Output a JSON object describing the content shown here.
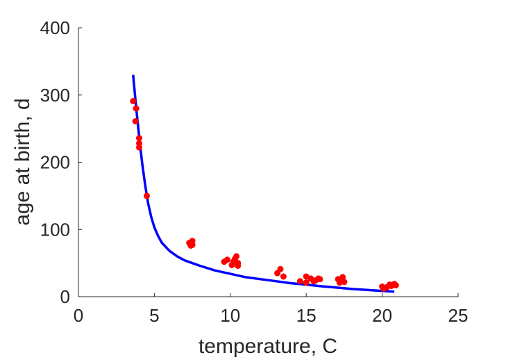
{
  "chart_data": {
    "type": "scatter",
    "title": "",
    "xlabel": "temperature, C",
    "ylabel": "age at birth, d",
    "xlim": [
      0,
      25
    ],
    "ylim": [
      0,
      400
    ],
    "xticks": [
      0,
      5,
      10,
      15,
      20,
      25
    ],
    "yticks": [
      0,
      100,
      200,
      300,
      400
    ],
    "grid": false,
    "series": [
      {
        "type": "scatter",
        "color": "#ff0000",
        "points": [
          [
            3.6,
            291
          ],
          [
            3.8,
            280
          ],
          [
            3.75,
            261
          ],
          [
            4.0,
            236
          ],
          [
            4.0,
            228
          ],
          [
            4.0,
            222
          ],
          [
            4.5,
            150
          ],
          [
            7.3,
            80
          ],
          [
            7.4,
            76
          ],
          [
            7.5,
            83
          ],
          [
            7.5,
            77
          ],
          [
            9.6,
            52
          ],
          [
            9.8,
            55
          ],
          [
            10.1,
            47
          ],
          [
            10.2,
            52
          ],
          [
            10.3,
            56
          ],
          [
            10.4,
            60
          ],
          [
            10.5,
            50
          ],
          [
            10.5,
            46
          ],
          [
            13.1,
            35
          ],
          [
            13.3,
            41
          ],
          [
            13.5,
            30
          ],
          [
            14.6,
            23
          ],
          [
            15.0,
            30
          ],
          [
            15.0,
            21
          ],
          [
            15.3,
            27
          ],
          [
            15.5,
            23
          ],
          [
            15.6,
            24
          ],
          [
            15.8,
            27
          ],
          [
            15.9,
            26
          ],
          [
            17.1,
            26
          ],
          [
            17.2,
            21
          ],
          [
            17.3,
            25
          ],
          [
            17.4,
            29
          ],
          [
            17.5,
            22
          ],
          [
            20.0,
            15
          ],
          [
            20.1,
            12
          ],
          [
            20.3,
            14
          ],
          [
            20.5,
            18
          ],
          [
            20.6,
            16
          ],
          [
            20.8,
            19
          ],
          [
            20.9,
            17
          ]
        ]
      },
      {
        "type": "line",
        "color": "#0000ff",
        "points": [
          [
            3.6,
            330
          ],
          [
            3.8,
            282
          ],
          [
            4.0,
            238
          ],
          [
            4.2,
            198
          ],
          [
            4.4,
            165
          ],
          [
            4.6,
            138
          ],
          [
            4.8,
            118
          ],
          [
            5.0,
            103
          ],
          [
            5.25,
            90
          ],
          [
            5.5,
            80
          ],
          [
            6.0,
            68
          ],
          [
            6.5,
            60
          ],
          [
            7.0,
            54
          ],
          [
            8.0,
            46
          ],
          [
            9.0,
            39
          ],
          [
            10.0,
            34
          ],
          [
            11.0,
            29
          ],
          [
            12.0,
            26
          ],
          [
            13.0,
            23
          ],
          [
            14.0,
            20
          ],
          [
            15.0,
            18
          ],
          [
            16.0,
            15.5
          ],
          [
            17.0,
            13.5
          ],
          [
            18.0,
            11.5
          ],
          [
            19.0,
            10
          ],
          [
            20.0,
            8.5
          ],
          [
            20.8,
            7.5
          ]
        ]
      }
    ]
  }
}
